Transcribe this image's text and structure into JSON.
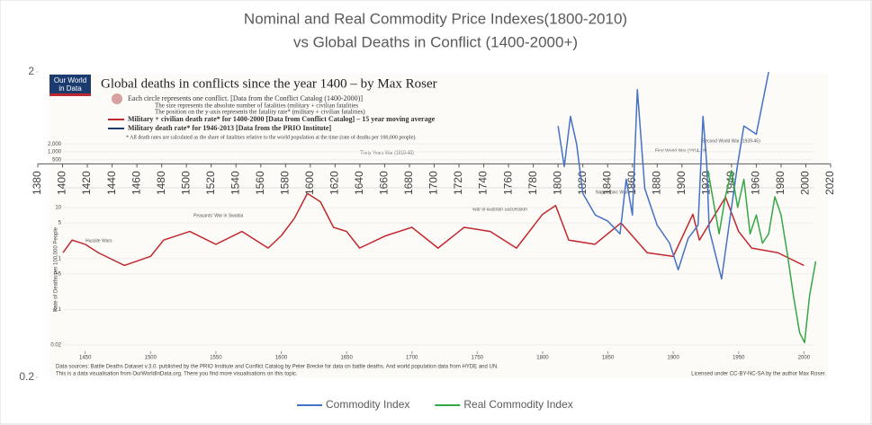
{
  "chart_data": [
    {
      "type": "line",
      "title": "Nominal and Real Commodity Price Indexes(1800-2010)",
      "subtitle": "vs Global Deaths in Conflict (1400-2000+)",
      "xlim": [
        1380,
        2020
      ],
      "xticks": [
        1380,
        1400,
        1420,
        1440,
        1460,
        1480,
        1500,
        1520,
        1540,
        1560,
        1580,
        1600,
        1620,
        1640,
        1660,
        1680,
        1700,
        1720,
        1740,
        1760,
        1780,
        1800,
        1820,
        1840,
        1860,
        1880,
        1900,
        1920,
        1940,
        1960,
        1980,
        2000,
        2020
      ],
      "ylim": [
        0.2,
        2
      ],
      "yticks": [
        0.2,
        2
      ],
      "log_y": true,
      "x_axis_crosses": 1,
      "legend": "bottom",
      "series": [
        {
          "name": "Commodity Index",
          "color": "#4472c4",
          "x": [
            1800,
            1805,
            1810,
            1815,
            1820,
            1830,
            1840,
            1850,
            1855,
            1860,
            1864,
            1870,
            1880,
            1890,
            1897,
            1905,
            1913,
            1917,
            1920,
            1922,
            1932,
            1940,
            1945,
            1950,
            1960,
            1970
          ],
          "values": [
            1.33,
            0.98,
            1.43,
            1.16,
            0.8,
            0.68,
            0.65,
            0.59,
            0.89,
            0.68,
            1.75,
            0.83,
            0.63,
            0.55,
            0.45,
            0.57,
            0.63,
            1.43,
            1.0,
            0.61,
            0.42,
            0.72,
            1.0,
            1.33,
            1.25,
            2.0
          ]
        },
        {
          "name": "Real Commodity Index",
          "color": "#33a845",
          "x": [
            1921,
            1930,
            1935,
            1940,
            1945,
            1950,
            1955,
            1960,
            1965,
            1970,
            1975,
            1980,
            1985,
            1990,
            1995,
            1999,
            2003,
            2008
          ],
          "values": [
            0.95,
            0.59,
            0.78,
            0.95,
            0.72,
            0.89,
            0.59,
            0.68,
            0.55,
            0.59,
            0.78,
            0.68,
            0.51,
            0.37,
            0.28,
            0.26,
            0.37,
            0.48
          ]
        }
      ]
    },
    {
      "type": "line",
      "title": "Global deaths in conflicts since the year 1400 – by Max Roser",
      "logo": [
        "Our World",
        "in Data"
      ],
      "notes": [
        "Each circle represents one conflict. [Data from the Conflict Catalog (1400-2000)]",
        "The size represents the absolute number of fatalities (military + civilian fatalities",
        "The position on the y-axis represents the fatality rate* (military + civilian fatalities)",
        "Military + civilian death rate* for 1400-2000 [Data from Conflict Catalog] – 15 year moving average",
        "Military death rate* for 1946-2013 [Data from the PRIO Institute]",
        "* All death rates are calculated as the share of fatalities relative to the world population at the time (rate of deaths per 100,000 people)."
      ],
      "y_label": "Rate of Deaths per 100,000 People",
      "xlim": [
        1433,
        2008
      ],
      "xticks": [
        1450,
        1500,
        1550,
        1600,
        1650,
        1700,
        1750,
        1800,
        1850,
        1900,
        1950,
        2000
      ],
      "ylim": [
        0.015,
        20
      ],
      "yticks": [
        0.02,
        0.1,
        0.5,
        1,
        5,
        10
      ],
      "log_y": true,
      "upper_ylim": [
        60,
        3000
      ],
      "upper_yticks": [
        {
          "value": 2000,
          "label": "2,000"
        },
        {
          "value": 1000,
          "label": "1,000"
        },
        500
      ],
      "annotations": [
        "Thirty Years War (1618-48)",
        "First World War (1914-18)",
        "Second World War (1939-45)",
        "Napoleonic Wars",
        "War of Austrian Succession",
        "Hussite Wars",
        "Peasants' War in Swabia"
      ],
      "sources": [
        "Data sources: Battle Deaths Dataset v.3.0. published by the PRIO Institute and Conflict Catalog by Peter Brecke for data on battle deaths. And world population data from HYDE and UN.",
        "This is a data visualisation from OurWorldInData.org. There you find more visualisations on this topic.",
        "Licensed under CC-BY-NC-SA by the author Max Roser."
      ],
      "series": [
        {
          "color": "#c0282f",
          "x": [
            1433,
            1440,
            1450,
            1460,
            1480,
            1500,
            1510,
            1530,
            1550,
            1570,
            1590,
            1600,
            1610,
            1620,
            1630,
            1640,
            1650,
            1660,
            1680,
            1700,
            1720,
            1740,
            1760,
            1780,
            1800,
            1810,
            1820,
            1840,
            1860,
            1880,
            1900,
            1915,
            1920,
            1940,
            1950,
            1960,
            1980,
            2000
          ],
          "values": [
            1.3,
            2.3,
            1.9,
            1.3,
            0.73,
            1.1,
            2.3,
            3.4,
            1.9,
            3.4,
            1.6,
            2.8,
            6.1,
            19,
            13,
            4.1,
            3.4,
            1.6,
            2.8,
            4.1,
            1.6,
            4.1,
            3.4,
            1.6,
            7.4,
            11,
            2.3,
            1.9,
            5,
            1.3,
            1.1,
            7.4,
            2.3,
            16,
            3.4,
            1.6,
            1.3,
            0.73
          ]
        }
      ]
    }
  ]
}
